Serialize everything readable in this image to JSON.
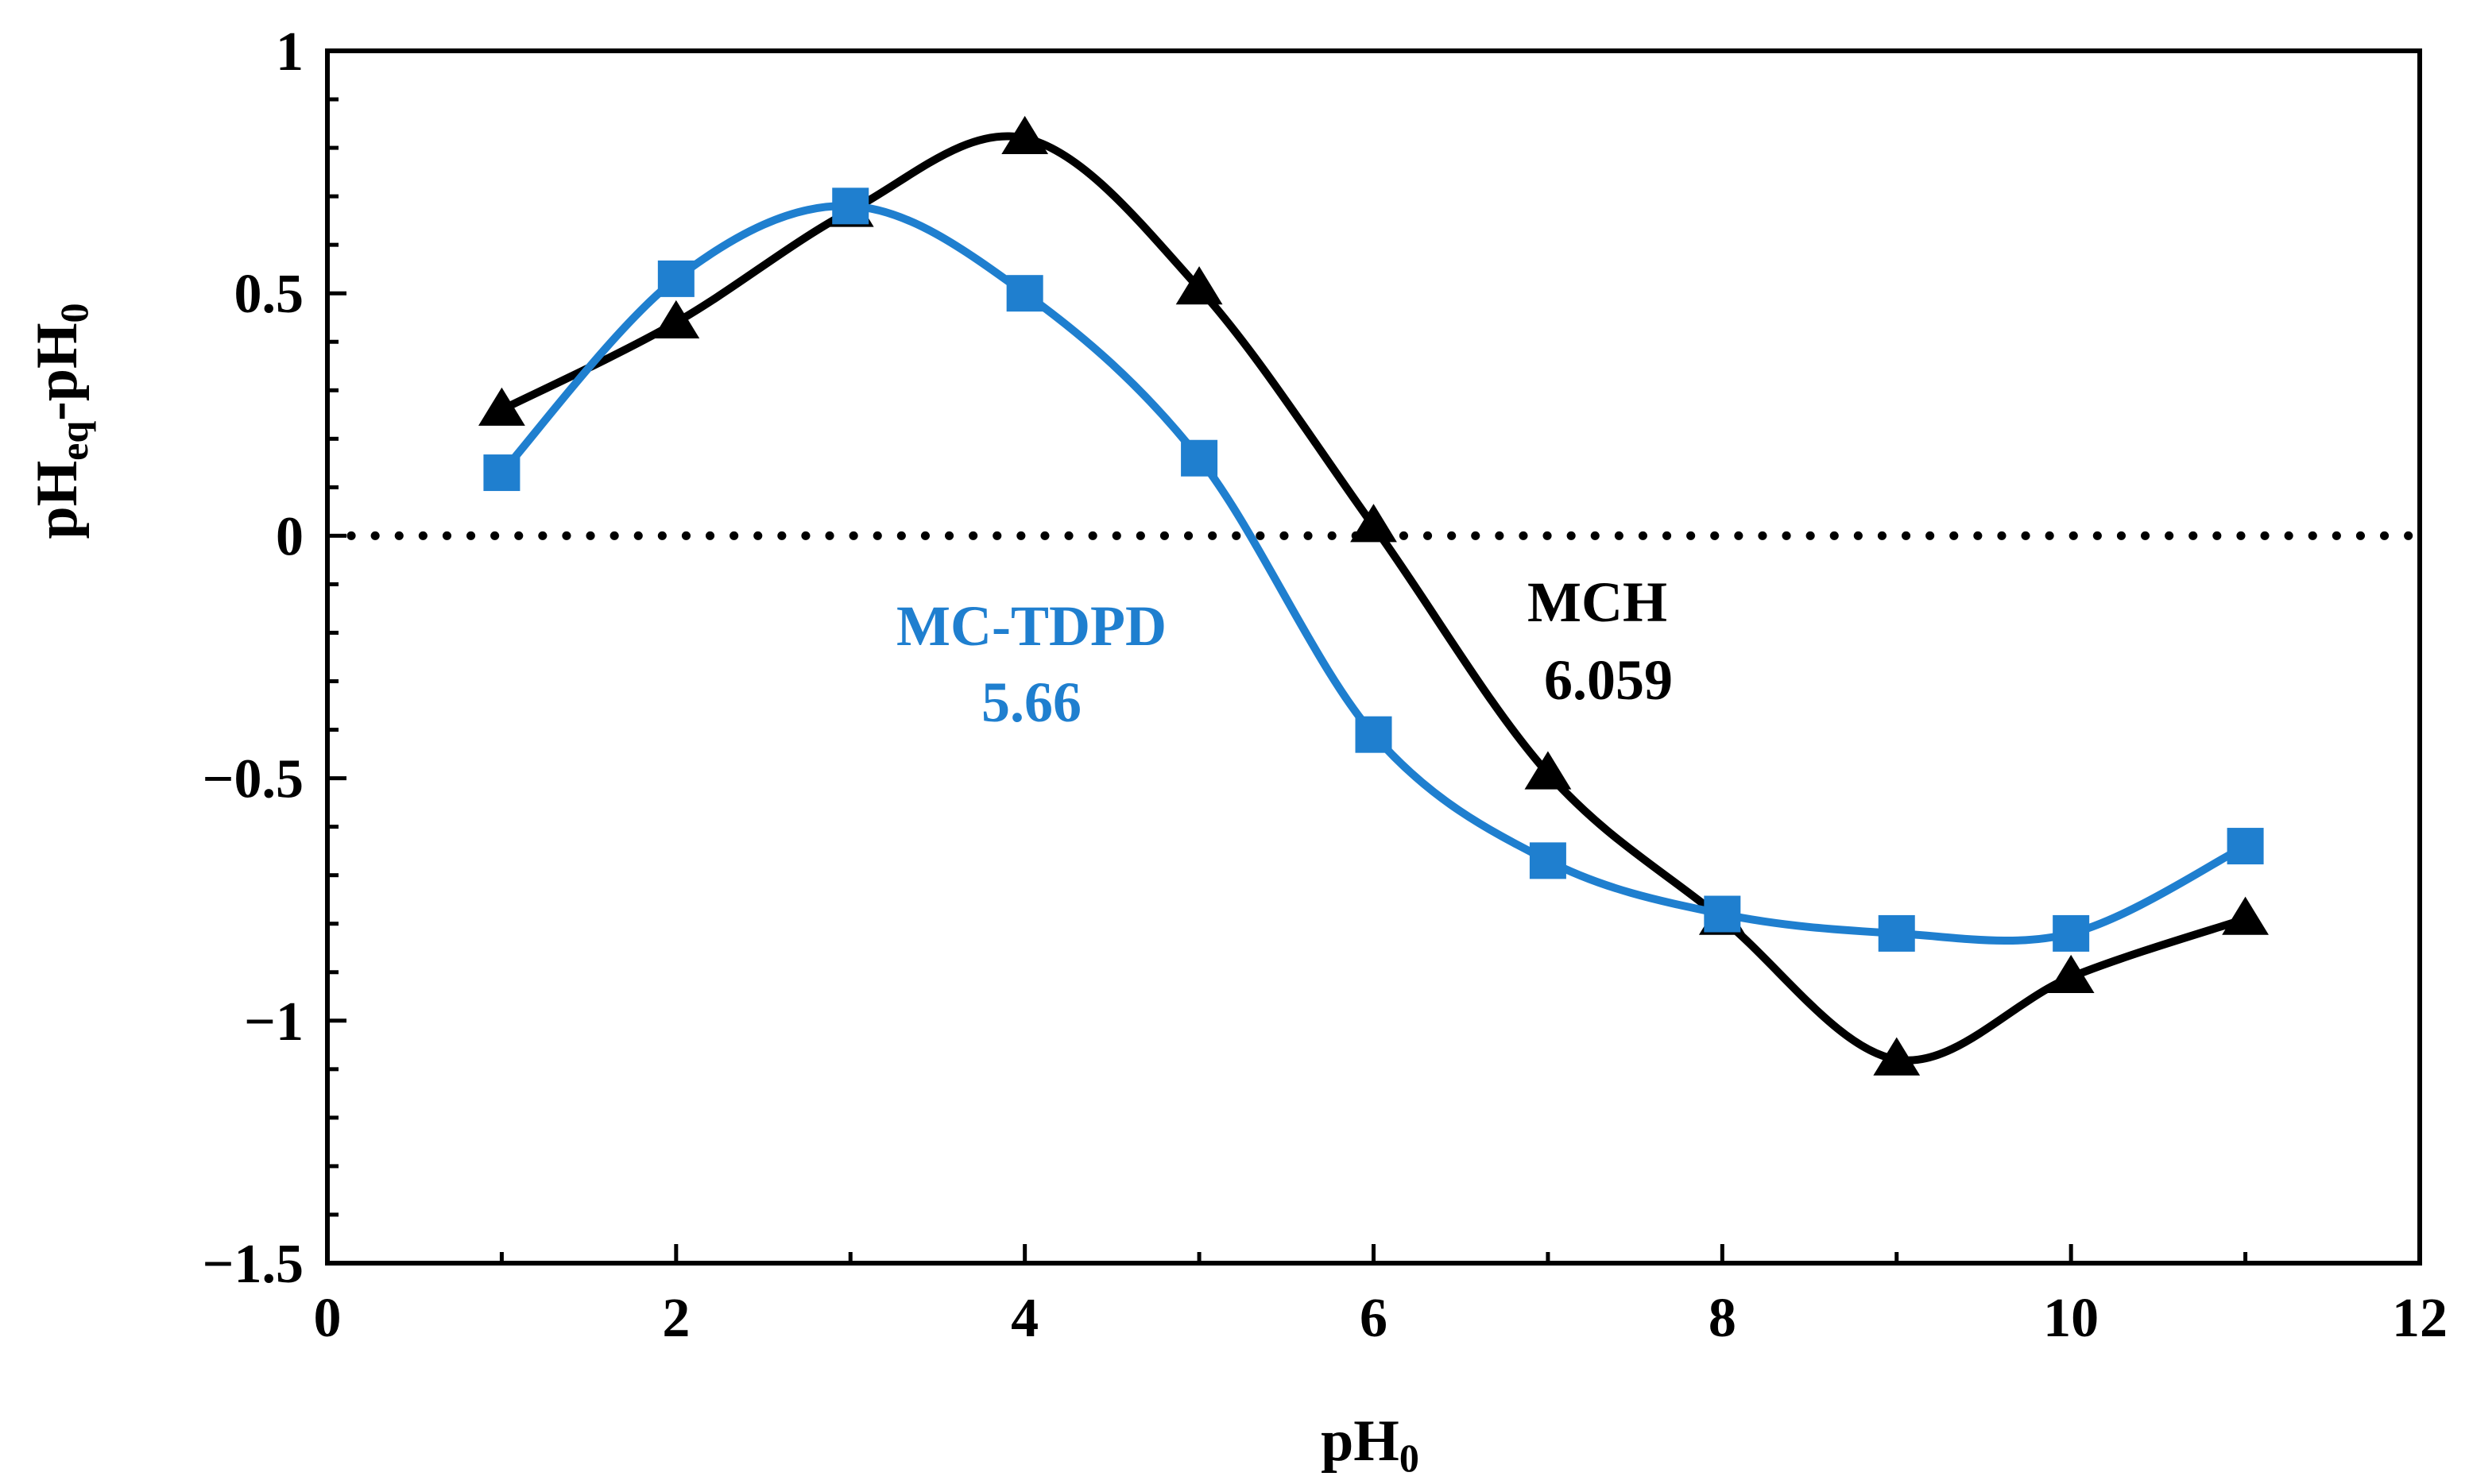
{
  "chart_data": {
    "type": "line",
    "title": "",
    "xlabel": "pH",
    "xlabel_sub": "0",
    "ylabel_parts": [
      "pH",
      "eq",
      "-pH",
      "0"
    ],
    "xlim": [
      0,
      12
    ],
    "ylim": [
      -1.5,
      1
    ],
    "xticks": [
      0,
      2,
      4,
      6,
      8,
      10,
      12
    ],
    "yticks": [
      1,
      0.5,
      0,
      -0.5,
      -1,
      -1.5
    ],
    "xtick_labels": [
      "0",
      "2",
      "4",
      "6",
      "8",
      "10",
      "12"
    ],
    "ytick_labels": [
      "1",
      "0.5",
      "0",
      "−0.5",
      "−1",
      "−1.5"
    ],
    "grid": false,
    "reference_line": {
      "y": 0,
      "style": "dotted"
    },
    "series": [
      {
        "name": "MCH",
        "marker": "triangle",
        "color": "#000000",
        "x": [
          1,
          2,
          3,
          4,
          5,
          6,
          7,
          8,
          9,
          10,
          11
        ],
        "values": [
          0.26,
          0.44,
          0.67,
          0.82,
          0.51,
          0.02,
          -0.49,
          -0.79,
          -1.08,
          -0.91,
          -0.79
        ]
      },
      {
        "name": "MC-TDPD",
        "marker": "square",
        "color": "#1f7fcf",
        "x": [
          1,
          2,
          3,
          4,
          5,
          6,
          7,
          8,
          9,
          10,
          11
        ],
        "values": [
          0.13,
          0.53,
          0.68,
          0.5,
          0.16,
          -0.41,
          -0.67,
          -0.78,
          -0.82,
          -0.82,
          -0.64
        ]
      }
    ],
    "annotations": [
      {
        "series": "MC-TDPD",
        "name": "MC-TDPD",
        "value": "5.66",
        "color": "#1f7fcf"
      },
      {
        "series": "MCH",
        "name": "MCH",
        "value": "6.059",
        "color": "#000000"
      }
    ]
  }
}
